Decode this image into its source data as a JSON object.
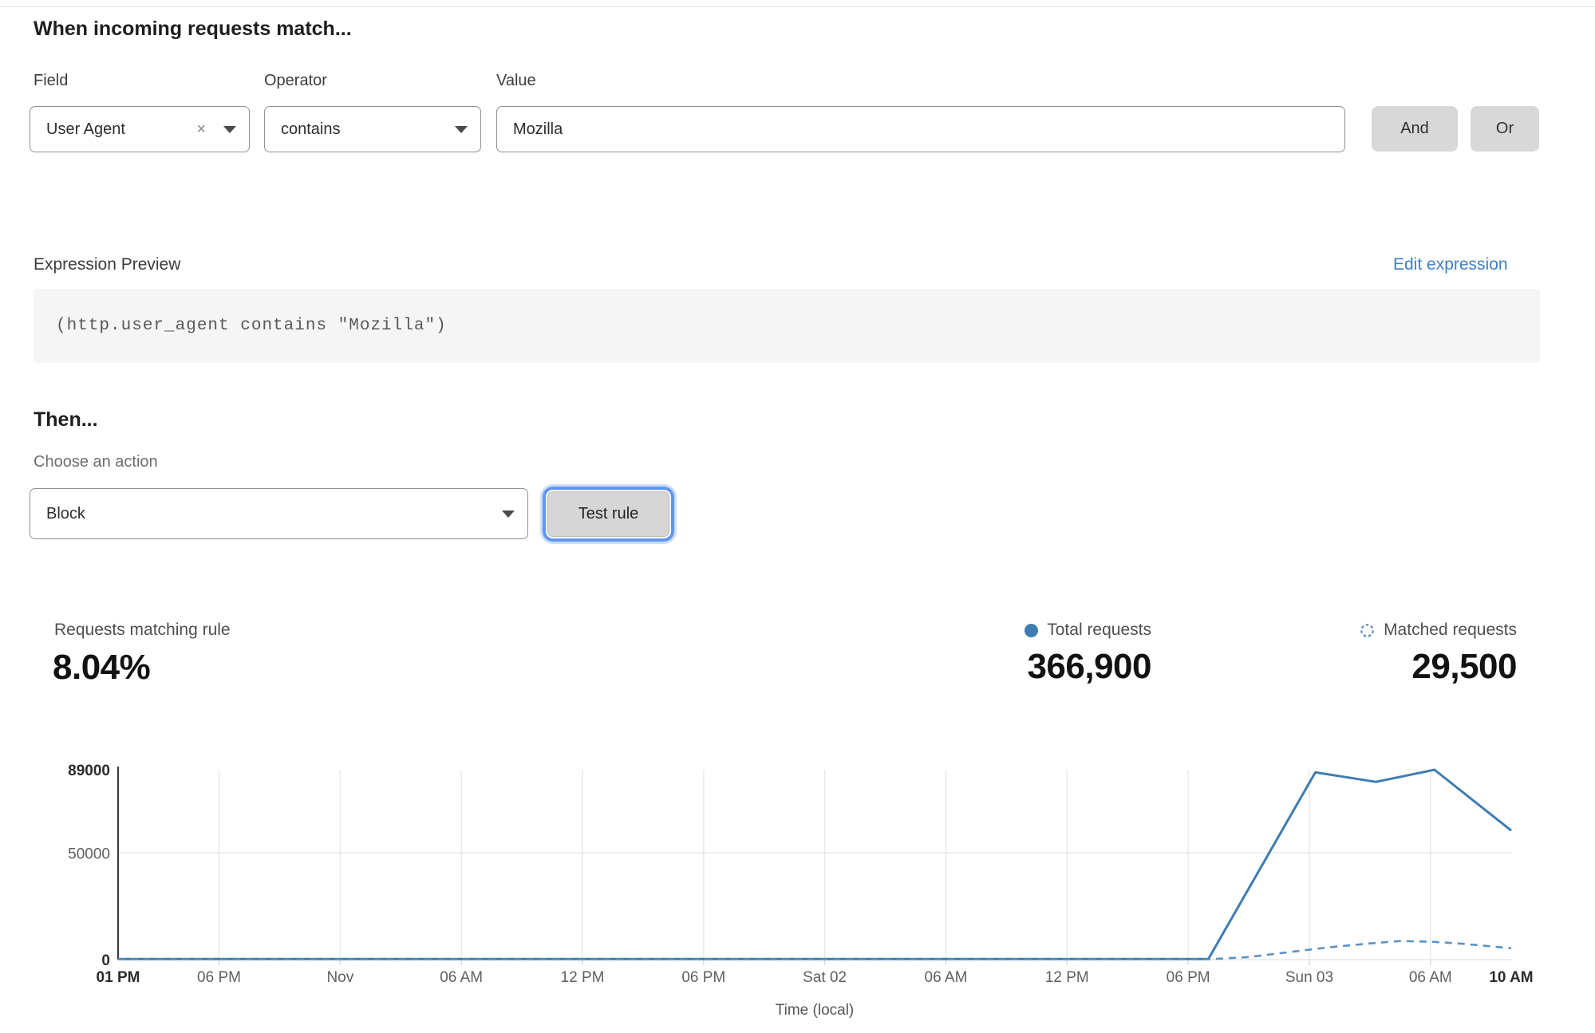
{
  "rule_builder": {
    "heading": "When incoming requests match...",
    "field": {
      "label": "Field",
      "value": "User Agent",
      "clear_icon": "×"
    },
    "operator": {
      "label": "Operator",
      "value": "contains"
    },
    "value": {
      "label": "Value",
      "value": "Mozilla"
    },
    "connectors": {
      "and": "And",
      "or": "Or"
    }
  },
  "expression": {
    "label": "Expression Preview",
    "edit_link": "Edit expression",
    "code": "(http.user_agent contains \"Mozilla\")"
  },
  "then_section": {
    "heading": "Then...",
    "action_label": "Choose an action",
    "action_value": "Block",
    "test_button": "Test rule"
  },
  "stats": {
    "matching_label": "Requests matching rule",
    "matching_value": "8.04%",
    "total_label": "Total requests",
    "total_value": "366,900",
    "matched_label": "Matched requests",
    "matched_value": "29,500"
  },
  "colors": {
    "accent_blue": "#3e7cb1",
    "dashed_blue": "#5b92c4",
    "link_blue": "#3f7fc1",
    "grid_gray": "#e7e7e7",
    "axis_dark": "#3c3c3c"
  },
  "chart_data": {
    "type": "line",
    "title": "",
    "xlabel": "Time (local)",
    "ylabel": "",
    "ylim": [
      0,
      89000
    ],
    "x_range_hours": [
      0,
      69
    ],
    "grid": true,
    "legend_position": "top-right",
    "y_ticks": [
      {
        "label": "0",
        "value": 0,
        "bold": true
      },
      {
        "label": "50000",
        "value": 50000,
        "bold": false
      },
      {
        "label": "89000",
        "value": 89000,
        "bold": true
      }
    ],
    "x_ticks": [
      {
        "label": "01 PM",
        "hour": 0,
        "bold": true
      },
      {
        "label": "06 PM",
        "hour": 5,
        "bold": false
      },
      {
        "label": "Nov",
        "hour": 11,
        "bold": false
      },
      {
        "label": "06 AM",
        "hour": 17,
        "bold": false
      },
      {
        "label": "12 PM",
        "hour": 23,
        "bold": false
      },
      {
        "label": "06 PM",
        "hour": 29,
        "bold": false
      },
      {
        "label": "Sat 02",
        "hour": 35,
        "bold": false
      },
      {
        "label": "06 AM",
        "hour": 41,
        "bold": false
      },
      {
        "label": "12 PM",
        "hour": 47,
        "bold": false
      },
      {
        "label": "06 PM",
        "hour": 53,
        "bold": false
      },
      {
        "label": "Sun 03",
        "hour": 59,
        "bold": false
      },
      {
        "label": "06 AM",
        "hour": 65,
        "bold": false
      },
      {
        "label": "10 AM",
        "hour": 69,
        "bold": true
      }
    ],
    "series": [
      {
        "name": "Total requests",
        "style": "solid",
        "color": "#3e7cb1",
        "points": [
          [
            0,
            250
          ],
          [
            54,
            250
          ],
          [
            59.3,
            87800
          ],
          [
            62.3,
            83300
          ],
          [
            65.2,
            89000
          ],
          [
            69,
            60500
          ]
        ]
      },
      {
        "name": "Matched requests",
        "style": "dashed",
        "color": "#5b92c4",
        "points": [
          [
            0,
            120
          ],
          [
            54,
            150
          ],
          [
            56,
            1200
          ],
          [
            58,
            3500
          ],
          [
            60,
            5800
          ],
          [
            62,
            7600
          ],
          [
            63.5,
            8700
          ],
          [
            65,
            8400
          ],
          [
            66.5,
            7500
          ],
          [
            68,
            6200
          ],
          [
            69,
            5300
          ]
        ]
      }
    ]
  }
}
